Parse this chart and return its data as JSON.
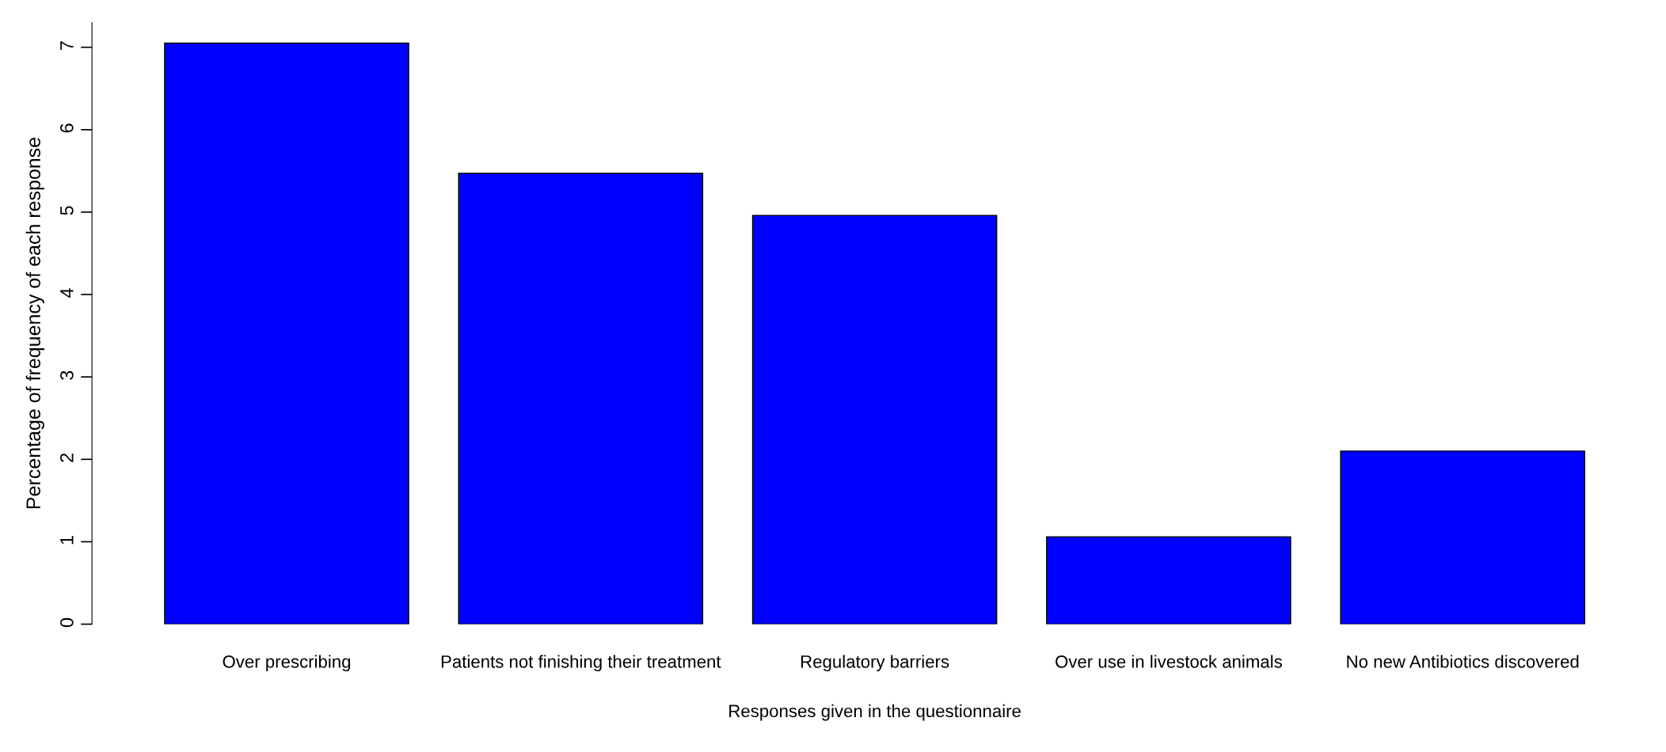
{
  "chart_data": {
    "type": "bar",
    "xlabel": "Responses given in the questionnaire",
    "ylabel": "Percentage of frequency of each response",
    "categories": [
      "Over prescribing",
      "Patients not finishing their treatment",
      "Regulatory barriers",
      "Over use in livestock animals",
      "No new Antibiotics discovered"
    ],
    "values": [
      7.05,
      5.47,
      4.96,
      1.06,
      2.1
    ],
    "color": "#0000ff",
    "ylim": [
      0,
      7.3
    ],
    "yticks": [
      0,
      1,
      2,
      3,
      4,
      5,
      6,
      7
    ],
    "grid": false
  }
}
